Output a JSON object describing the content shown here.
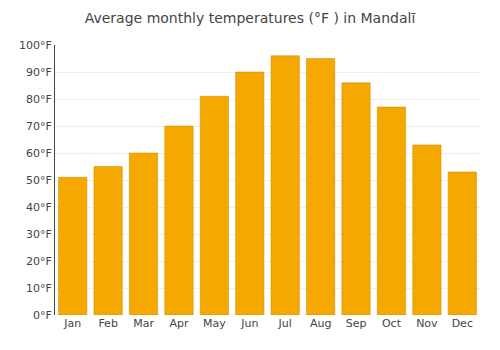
{
  "chart_data": {
    "type": "bar",
    "title": "Average monthly temperatures (°F ) in Mandalī",
    "categories": [
      "Jan",
      "Feb",
      "Mar",
      "Apr",
      "May",
      "Jun",
      "Jul",
      "Aug",
      "Sep",
      "Oct",
      "Nov",
      "Dec"
    ],
    "values": [
      51,
      55,
      60,
      70,
      81,
      90,
      96,
      95,
      86,
      77,
      63,
      53
    ],
    "color": "#F5A800",
    "ylim": [
      0,
      100
    ],
    "yticks": [
      {
        "value": 0,
        "label": "0°F"
      },
      {
        "value": 10,
        "label": "10°F"
      },
      {
        "value": 20,
        "label": "20°F"
      },
      {
        "value": 30,
        "label": "30°F"
      },
      {
        "value": 40,
        "label": "40°F"
      },
      {
        "value": 50,
        "label": "50°F"
      },
      {
        "value": 60,
        "label": "60°F"
      },
      {
        "value": 70,
        "label": "70°F"
      },
      {
        "value": 80,
        "label": "80°F"
      },
      {
        "value": 90,
        "label": "90°F"
      },
      {
        "value": 100,
        "label": "100°F"
      }
    ],
    "grid": true
  }
}
